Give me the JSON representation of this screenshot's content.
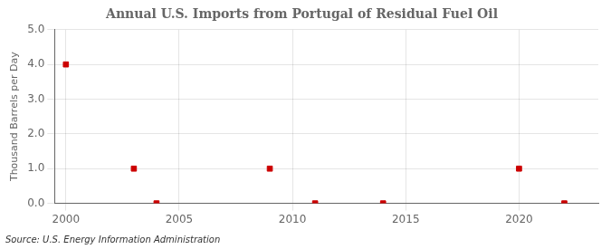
{
  "chart_data": {
    "type": "scatter",
    "title": "Annual U.S. Imports from Portugal of Residual Fuel Oil",
    "y_label": "Thousand Barrels per Day",
    "annotations": [
      "Source: U.S. Energy Information Administration"
    ],
    "x": [
      2000,
      2003,
      2004,
      2009,
      2011,
      2014,
      2020,
      2022
    ],
    "values": [
      4.0,
      1.0,
      0.0,
      1.0,
      0.0,
      0.0,
      1.0,
      0.0
    ],
    "color": "#cc0000",
    "marker": "square",
    "xlim": [
      1999.5,
      2023.5
    ],
    "xticks": [
      2000,
      2005,
      2010,
      2015,
      2020
    ],
    "ylim": [
      0.0,
      5.0
    ],
    "yticks": [
      {
        "value": 0.0,
        "label": "0.0"
      },
      {
        "value": 1.0,
        "label": "1.0"
      },
      {
        "value": 2.0,
        "label": "2.0"
      },
      {
        "value": 3.0,
        "label": "3.0"
      },
      {
        "value": 4.0,
        "label": "4.0"
      },
      {
        "value": 5.0,
        "label": "5.0"
      }
    ],
    "grid": true
  }
}
